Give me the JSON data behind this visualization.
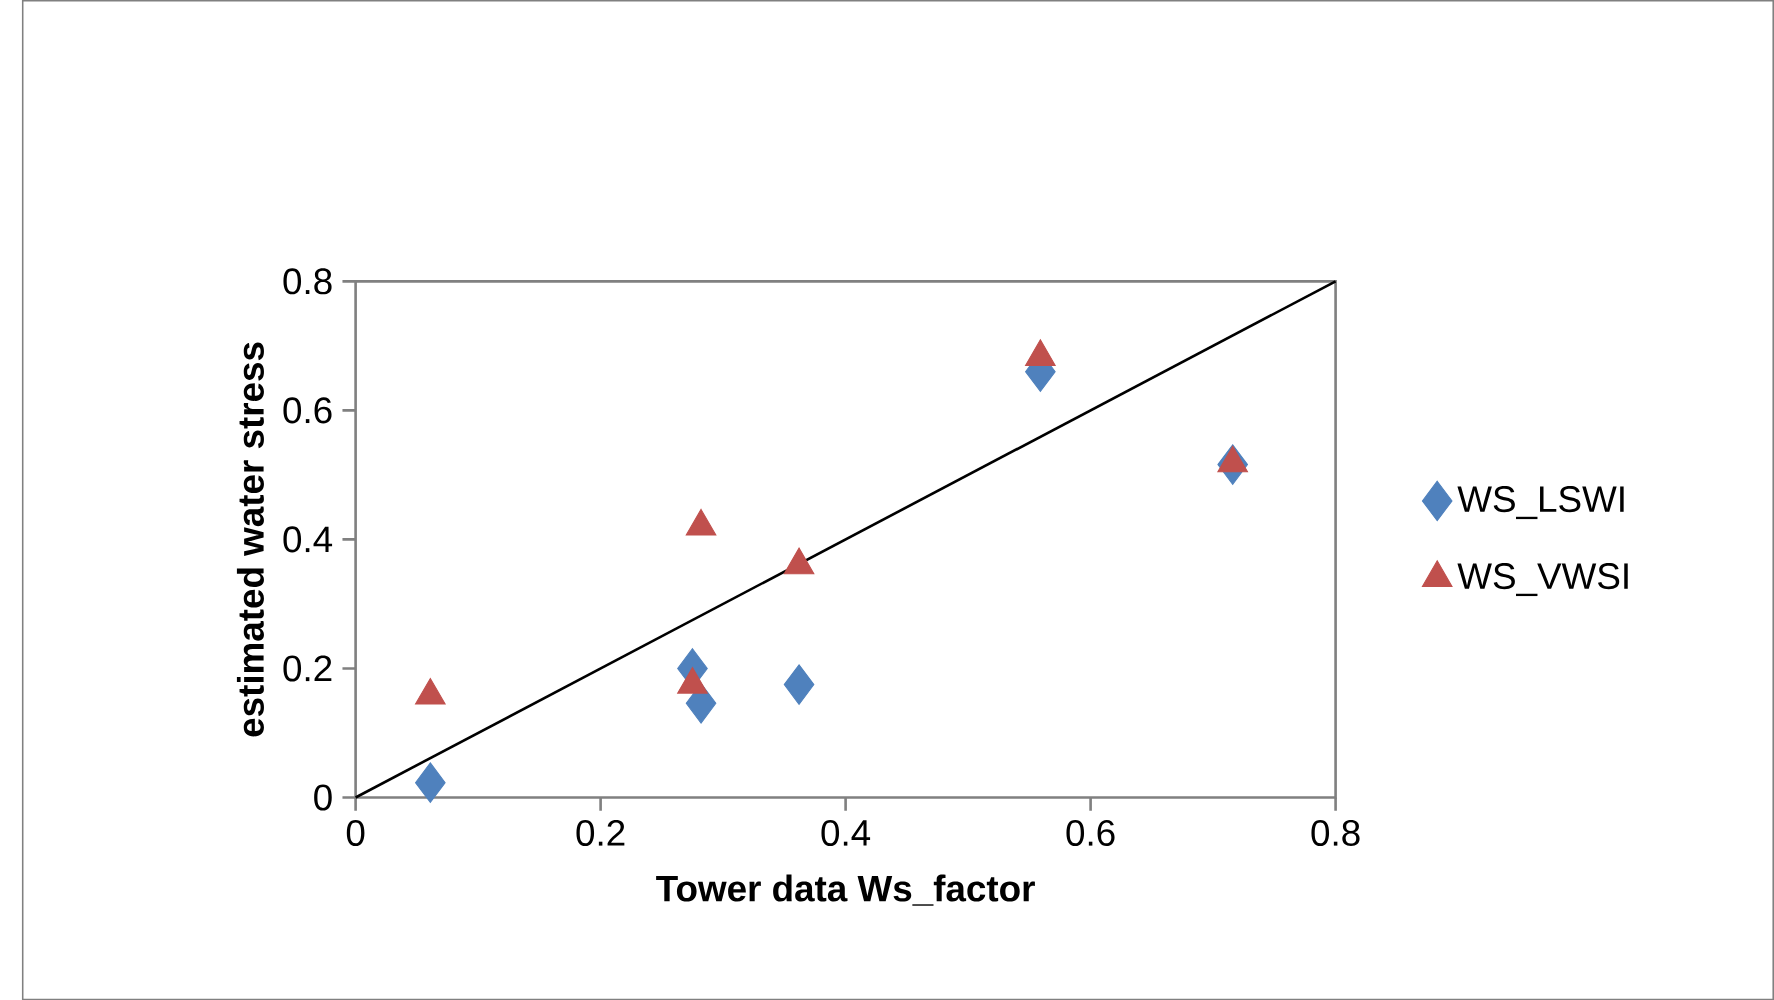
{
  "chart_data": {
    "type": "scatter",
    "xlabel": "Tower data Ws_factor",
    "ylabel": "estimated water stress",
    "xlim": [
      0,
      0.8
    ],
    "ylim": [
      0,
      0.8
    ],
    "xticks": [
      0,
      0.2,
      0.4,
      0.6,
      0.8
    ],
    "yticks": [
      0,
      0.2,
      0.4,
      0.6,
      0.8
    ],
    "grid": false,
    "legend": "right",
    "series": [
      {
        "name": "WS_LSWI",
        "color": "#4f81bd",
        "marker": "diamond",
        "x": [
          0.061,
          0.275,
          0.282,
          0.362,
          0.559,
          0.716
        ],
        "values": [
          0.023,
          0.2,
          0.146,
          0.175,
          0.66,
          0.516
        ]
      },
      {
        "name": "WS_VWSI",
        "color": "#c0504d",
        "marker": "triangle",
        "x": [
          0.061,
          0.275,
          0.282,
          0.362,
          0.559,
          0.716
        ],
        "values": [
          0.158,
          0.175,
          0.42,
          0.36,
          0.683,
          0.518
        ]
      },
      {
        "type": "line",
        "color": "#000000",
        "marker": "none",
        "x": [
          0,
          0.8
        ],
        "values": [
          0,
          0.8
        ]
      }
    ]
  }
}
